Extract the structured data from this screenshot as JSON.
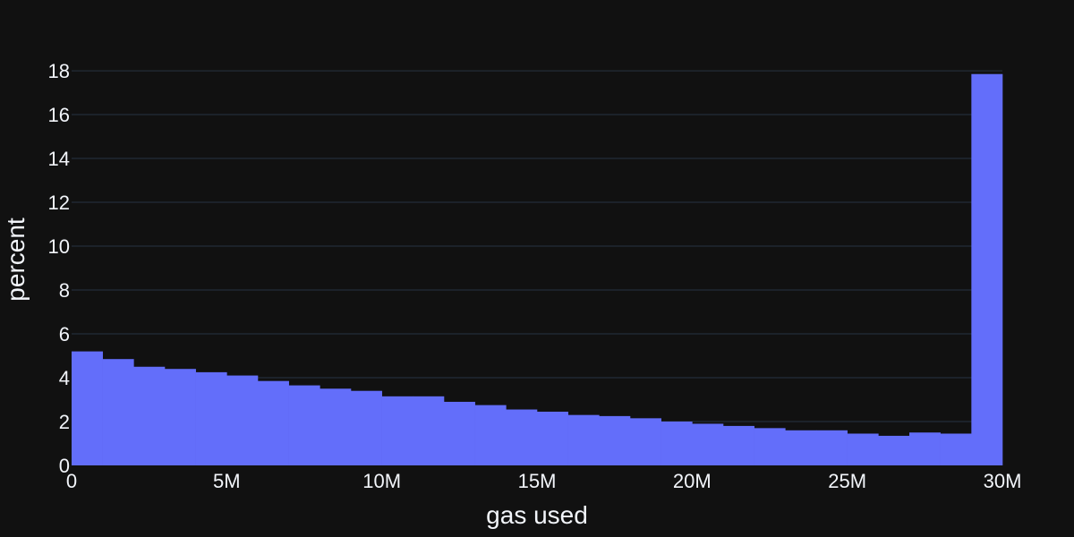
{
  "chart_data": {
    "type": "bar",
    "subtype": "histogram",
    "xlabel": "gas used",
    "ylabel": "percent",
    "xlim": [
      0,
      30000000
    ],
    "ylim": [
      0,
      18.5
    ],
    "bin_width": 1000000,
    "x_ticks": [
      {
        "value": 0,
        "label": "0"
      },
      {
        "value": 5000000,
        "label": "5M"
      },
      {
        "value": 10000000,
        "label": "10M"
      },
      {
        "value": 15000000,
        "label": "15M"
      },
      {
        "value": 20000000,
        "label": "20M"
      },
      {
        "value": 25000000,
        "label": "25M"
      },
      {
        "value": 30000000,
        "label": "30M"
      }
    ],
    "y_ticks": [
      {
        "value": 0,
        "label": "0"
      },
      {
        "value": 2,
        "label": "2"
      },
      {
        "value": 4,
        "label": "4"
      },
      {
        "value": 6,
        "label": "6"
      },
      {
        "value": 8,
        "label": "8"
      },
      {
        "value": 10,
        "label": "10"
      },
      {
        "value": 12,
        "label": "12"
      },
      {
        "value": 14,
        "label": "14"
      },
      {
        "value": 16,
        "label": "16"
      },
      {
        "value": 18,
        "label": "18"
      }
    ],
    "bin_starts": [
      0,
      1000000,
      2000000,
      3000000,
      4000000,
      5000000,
      6000000,
      7000000,
      8000000,
      9000000,
      10000000,
      11000000,
      12000000,
      13000000,
      14000000,
      15000000,
      16000000,
      17000000,
      18000000,
      19000000,
      20000000,
      21000000,
      22000000,
      23000000,
      24000000,
      25000000,
      26000000,
      27000000,
      28000000,
      29000000
    ],
    "values": [
      5.2,
      4.85,
      4.5,
      4.4,
      4.25,
      4.1,
      3.85,
      3.65,
      3.5,
      3.4,
      3.15,
      3.15,
      2.9,
      2.75,
      2.55,
      2.45,
      2.3,
      2.25,
      2.15,
      2.0,
      1.9,
      1.8,
      1.7,
      1.6,
      1.6,
      1.45,
      1.35,
      1.5,
      1.45,
      17.85
    ],
    "bar_color": "#636efa",
    "grid": true,
    "legend": false
  },
  "colors": {
    "background": "#111111",
    "grid": "#283442",
    "text": "#f2f5fa"
  }
}
